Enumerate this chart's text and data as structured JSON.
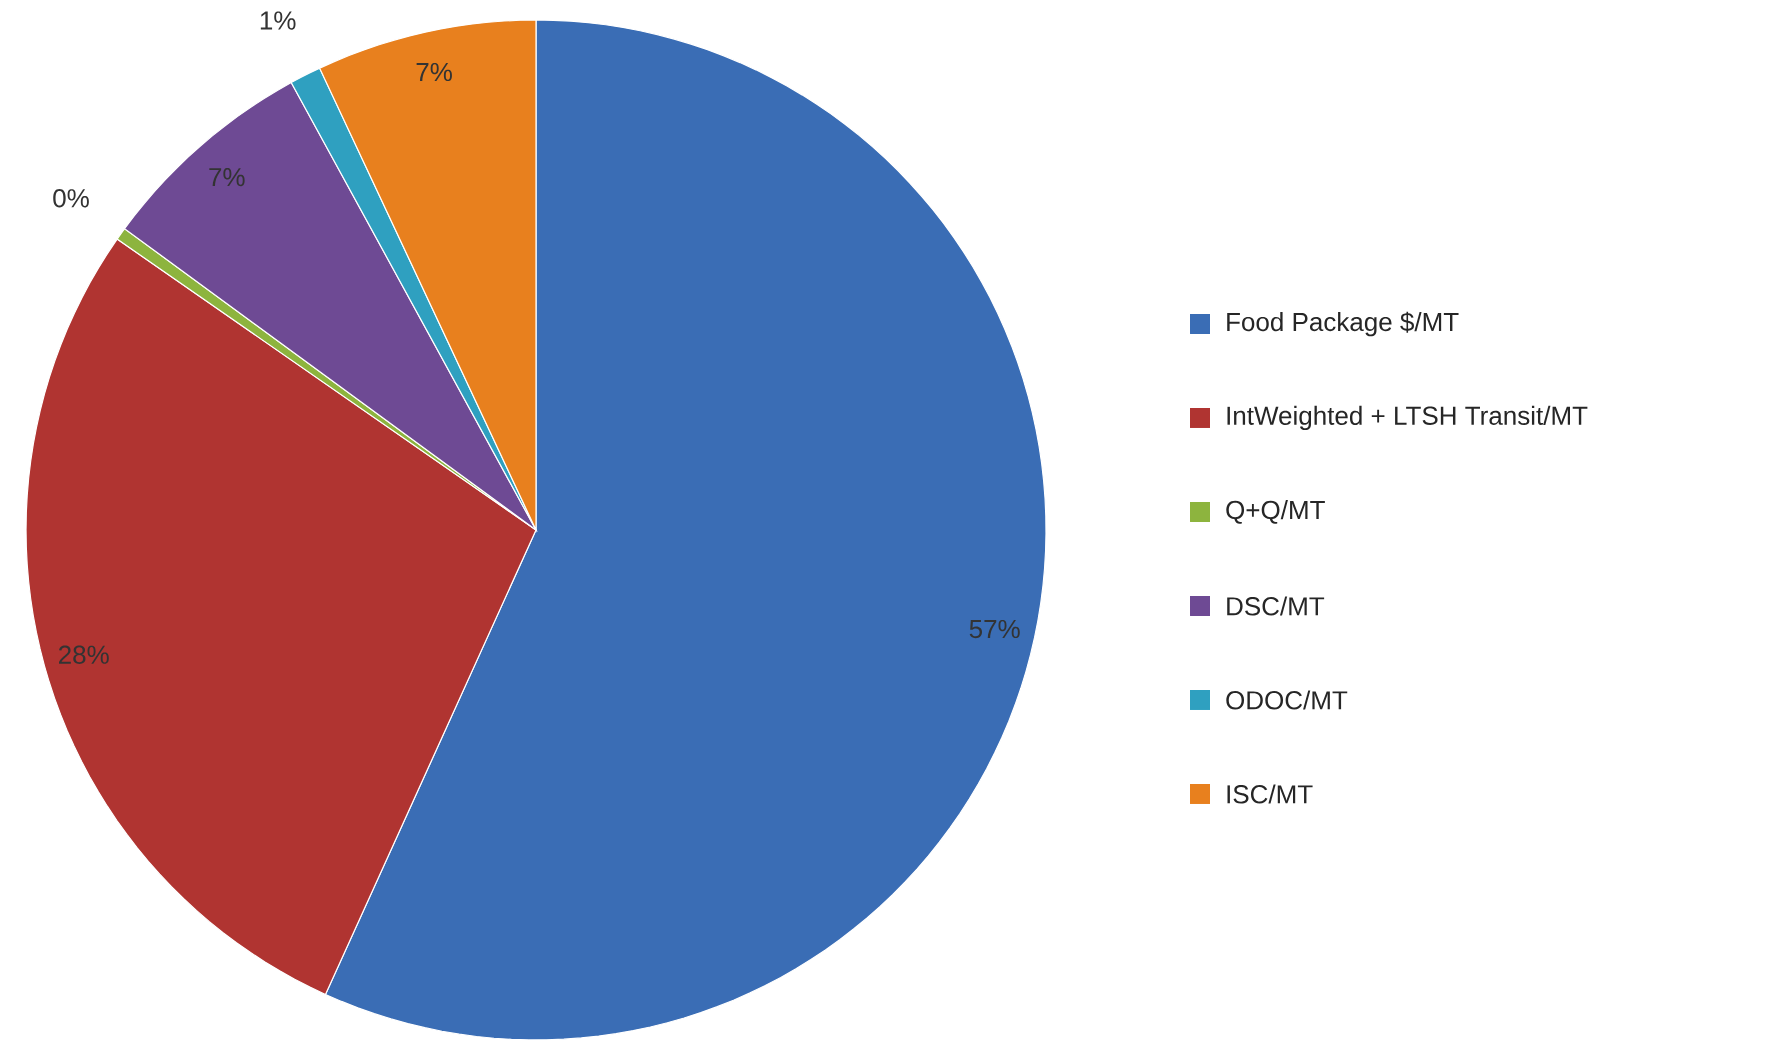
{
  "chart_data": {
    "type": "pie",
    "categories": [
      "Food Package $/MT",
      "IntWeighted + LTSH Transit/MT",
      "Q+Q/MT",
      "DSC/MT",
      "ODOC/MT",
      "ISC/MT"
    ],
    "values": [
      57,
      28,
      0.4,
      7,
      1,
      7
    ],
    "value_labels": [
      "57%",
      "28%",
      "0%",
      "7%",
      "1%",
      "7%"
    ],
    "colors": [
      "#3a6db5",
      "#b03431",
      "#8db43e",
      "#6e4a94",
      "#2fa0c0",
      "#e8801e"
    ],
    "legend": "right"
  }
}
